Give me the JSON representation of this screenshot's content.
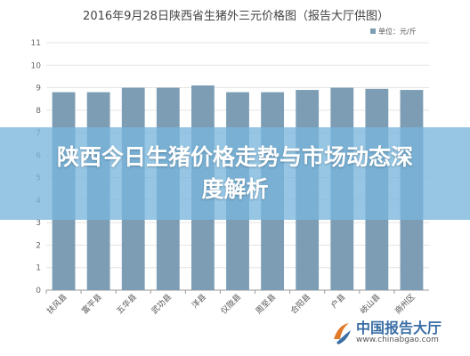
{
  "chart_data": {
    "type": "bar",
    "title": "2016年9月28日陕西省生猪外三元价格图（报告大厅供图）",
    "legend_label": "单位：元/斤",
    "categories": [
      "扶风县",
      "富平县",
      "五华县",
      "武功县",
      "洋县",
      "仪陇县",
      "周至县",
      "合阳县",
      "户县",
      "岐山县",
      "商州区"
    ],
    "values": [
      8.8,
      8.8,
      9.0,
      9.0,
      9.1,
      8.8,
      8.8,
      8.9,
      9.0,
      8.95,
      8.9
    ],
    "ylim": [
      0,
      11
    ],
    "yticks": [
      0,
      1,
      2,
      3,
      4,
      5,
      6,
      7,
      8,
      9,
      10,
      11
    ],
    "grid": true,
    "legend_position": "top-right",
    "bar_color": "#7c9db4"
  },
  "banner": {
    "title": "陕西今日生猪价格走势与市场动态深度解析"
  },
  "logo": {
    "name": "中国报告大厅",
    "url": "www.chinabgao.com"
  }
}
